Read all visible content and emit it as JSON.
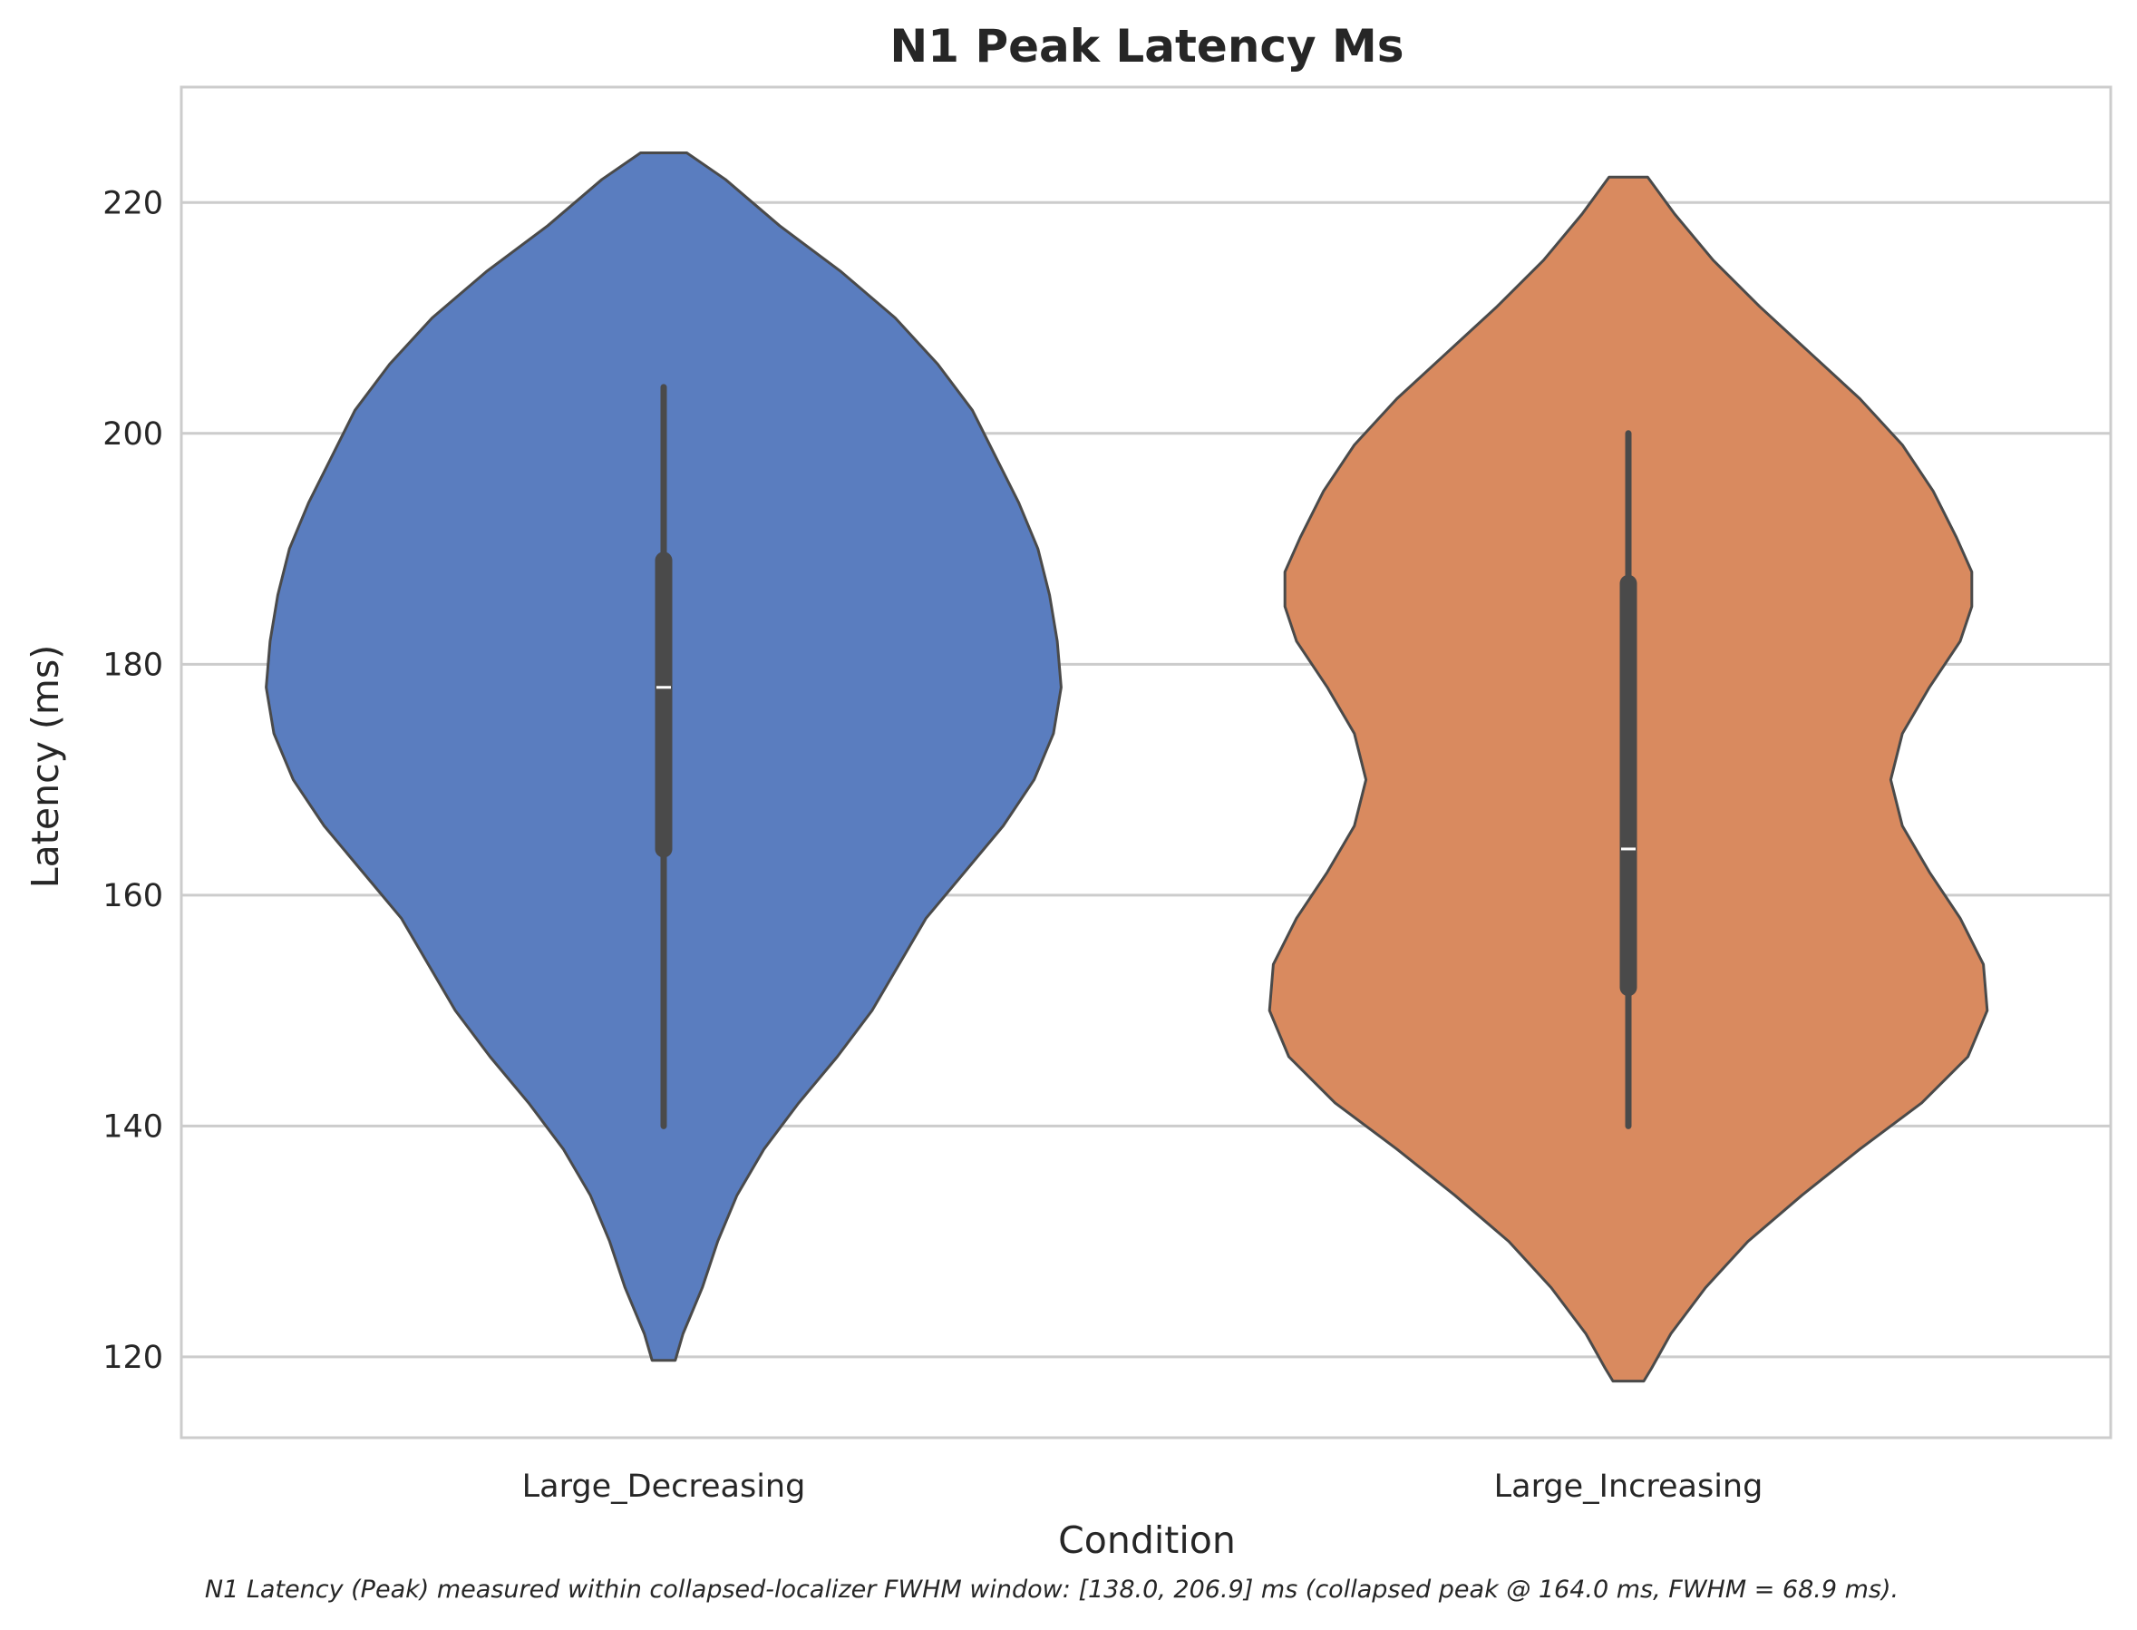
{
  "chart_data": {
    "type": "violin",
    "title": "N1 Peak Latency Ms",
    "xlabel": "Condition",
    "ylabel": "Latency (ms)",
    "ylim": [
      113,
      230
    ],
    "yticks": [
      120,
      140,
      160,
      180,
      200,
      220
    ],
    "grid": "horizontal",
    "caption": "N1 Latency (Peak) measured within collapsed-localizer FWHM window: [138.0, 206.9] ms (collapsed peak @ 164.0 ms, FWHM = 68.9 ms).",
    "categories": [
      "Large_Decreasing",
      "Large_Increasing"
    ],
    "colors": [
      "#5a7dbf",
      "#d98a5f"
    ],
    "series": [
      {
        "category": "Large_Decreasing",
        "median": 178,
        "q1": 164,
        "q3": 189,
        "whisker_low": 140,
        "whisker_high": 204,
        "violin_range": [
          119.7,
          224.3
        ],
        "density_profile": [
          [
            224.3,
            0.06
          ],
          [
            222,
            0.16
          ],
          [
            218,
            0.3
          ],
          [
            214,
            0.46
          ],
          [
            210,
            0.6
          ],
          [
            206,
            0.71
          ],
          [
            202,
            0.8
          ],
          [
            198,
            0.86
          ],
          [
            194,
            0.92
          ],
          [
            190,
            0.97
          ],
          [
            186,
            1.0
          ],
          [
            182,
            1.02
          ],
          [
            178,
            1.03
          ],
          [
            174,
            1.01
          ],
          [
            170,
            0.96
          ],
          [
            166,
            0.88
          ],
          [
            162,
            0.78
          ],
          [
            158,
            0.68
          ],
          [
            154,
            0.61
          ],
          [
            150,
            0.54
          ],
          [
            146,
            0.45
          ],
          [
            142,
            0.35
          ],
          [
            138,
            0.26
          ],
          [
            134,
            0.19
          ],
          [
            130,
            0.14
          ],
          [
            126,
            0.1
          ],
          [
            122,
            0.05
          ],
          [
            119.7,
            0.03
          ]
        ]
      },
      {
        "category": "Large_Increasing",
        "median": 164,
        "q1": 152,
        "q3": 187,
        "whisker_low": 140,
        "whisker_high": 200,
        "violin_range": [
          117.9,
          222.2
        ],
        "density_profile": [
          [
            222.2,
            0.05
          ],
          [
            219,
            0.12
          ],
          [
            215,
            0.22
          ],
          [
            211,
            0.34
          ],
          [
            207,
            0.47
          ],
          [
            203,
            0.6
          ],
          [
            199,
            0.71
          ],
          [
            195,
            0.79
          ],
          [
            191,
            0.85
          ],
          [
            188,
            0.89
          ],
          [
            185,
            0.89
          ],
          [
            182,
            0.86
          ],
          [
            178,
            0.78
          ],
          [
            174,
            0.71
          ],
          [
            170,
            0.68
          ],
          [
            166,
            0.71
          ],
          [
            162,
            0.78
          ],
          [
            158,
            0.86
          ],
          [
            154,
            0.92
          ],
          [
            150,
            0.93
          ],
          [
            146,
            0.88
          ],
          [
            142,
            0.76
          ],
          [
            138,
            0.6
          ],
          [
            134,
            0.45
          ],
          [
            130,
            0.31
          ],
          [
            126,
            0.2
          ],
          [
            122,
            0.11
          ],
          [
            119,
            0.06
          ],
          [
            117.9,
            0.04
          ]
        ]
      }
    ]
  }
}
